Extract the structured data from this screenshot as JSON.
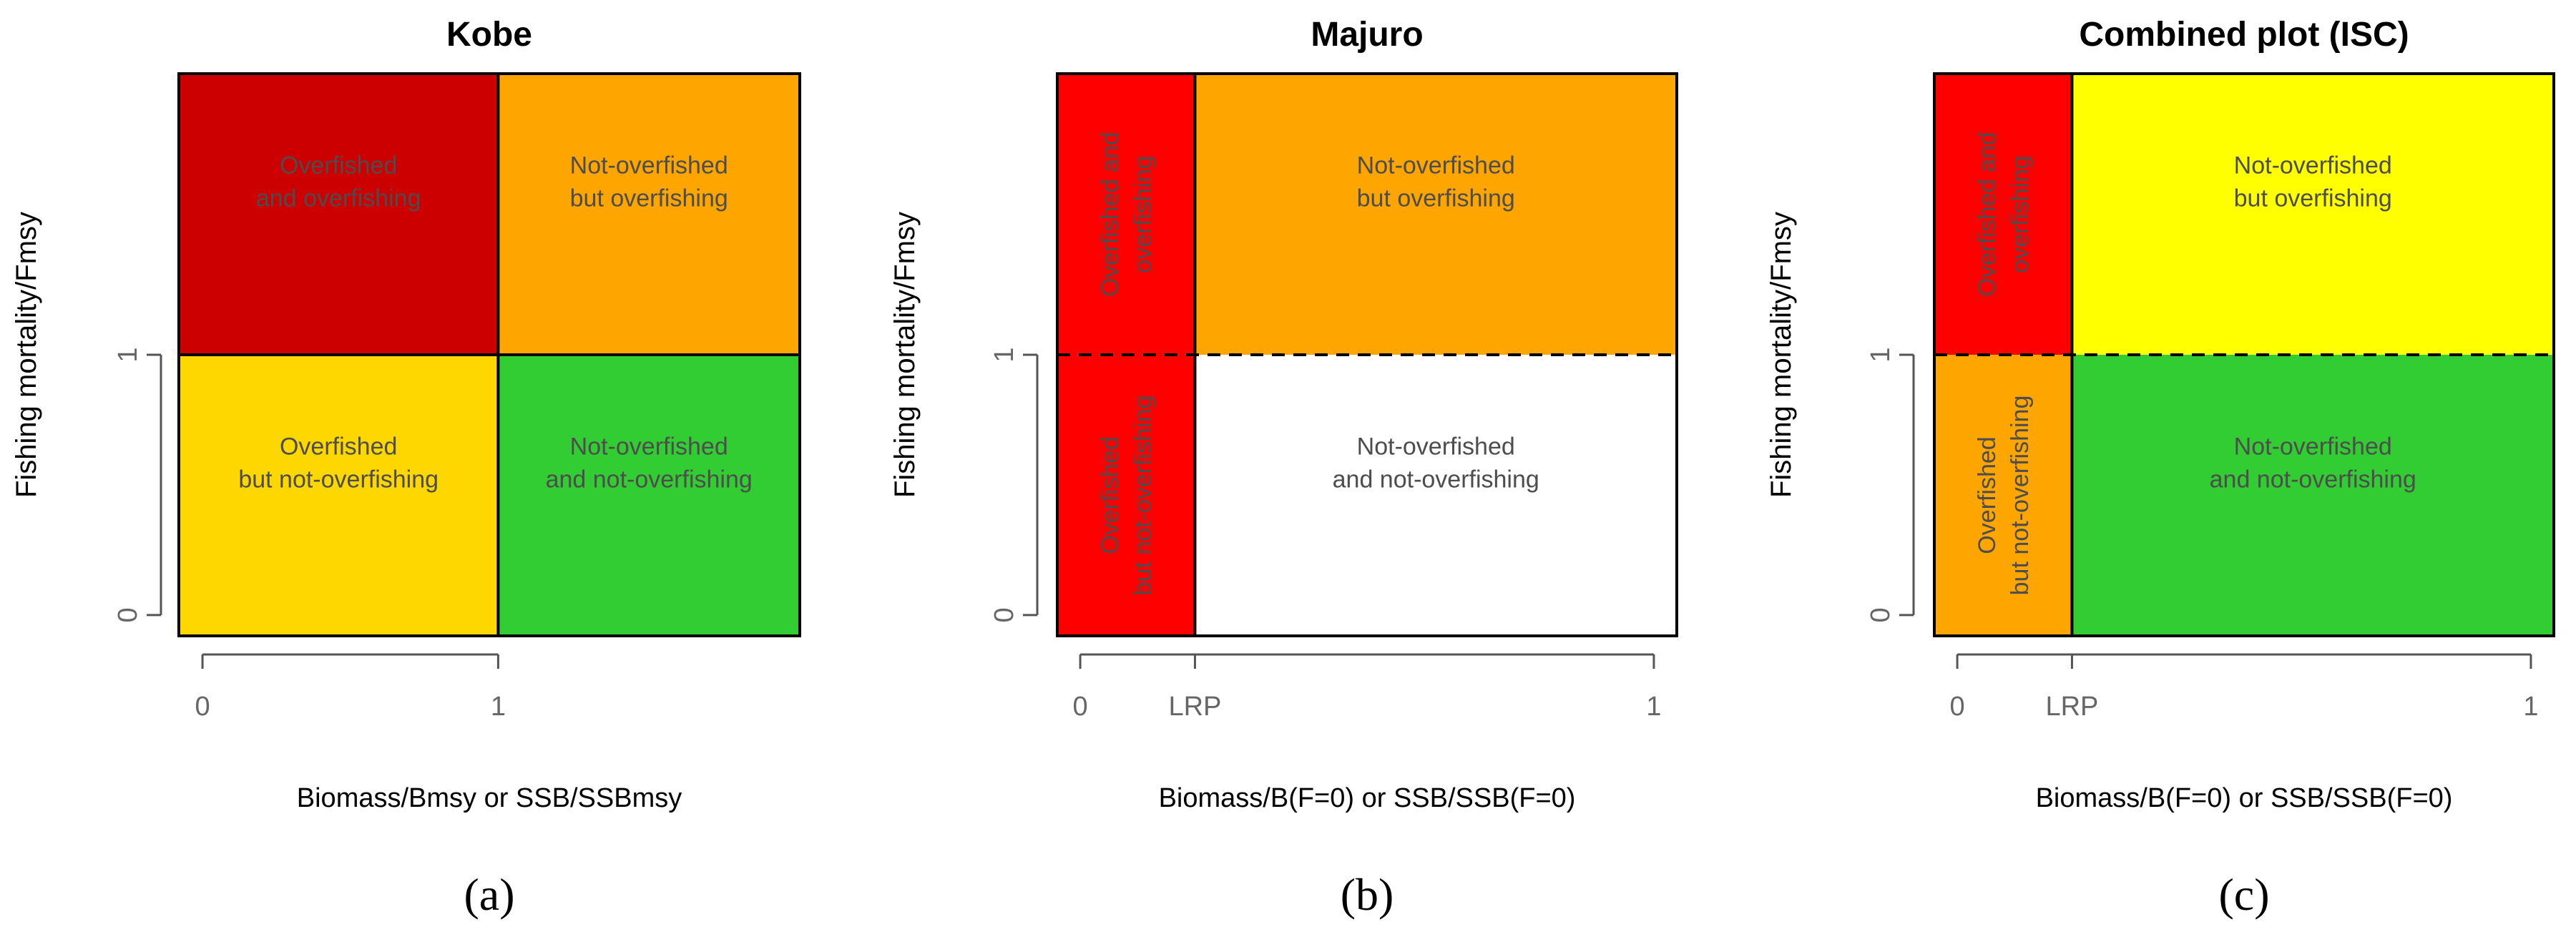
{
  "chart_data": [
    {
      "type": "heatmap",
      "panel_label": "(a)",
      "title": "Kobe",
      "xlabel": "Biomass/Bmsy or SSB/SSBmsy",
      "ylabel": "Fishing mortality/Fmsy",
      "xlim": [
        -0.08,
        2.02
      ],
      "ylim": [
        -0.08,
        2.08
      ],
      "x_ticks": [
        {
          "value": 0,
          "label": "0"
        },
        {
          "value": 1,
          "label": "1"
        }
      ],
      "y_ticks": [
        {
          "value": 0,
          "label": "0"
        },
        {
          "value": 1,
          "label": "1"
        }
      ],
      "dashed_hline": false,
      "regions": [
        {
          "x0": -0.08,
          "x1": 1,
          "y0": 1,
          "y1": 2.08,
          "color": "#cc0000",
          "lines": [
            "Overfished",
            "and overfishing"
          ],
          "vertical": false
        },
        {
          "x0": 1,
          "x1": 2.02,
          "y0": 1,
          "y1": 2.08,
          "color": "#ffa500",
          "lines": [
            "Not-overfished",
            "but overfishing"
          ],
          "vertical": false
        },
        {
          "x0": -0.08,
          "x1": 1,
          "y0": -0.08,
          "y1": 1,
          "color": "#ffd700",
          "lines": [
            "Overfished",
            "but not-overfishing"
          ],
          "vertical": false
        },
        {
          "x0": 1,
          "x1": 2.02,
          "y0": -0.08,
          "y1": 1,
          "color": "#32cd32",
          "lines": [
            "Not-overfished",
            "and not-overfishing"
          ],
          "vertical": false
        }
      ]
    },
    {
      "type": "heatmap",
      "panel_label": "(b)",
      "title": "Majuro",
      "xlabel": "Biomass/B(F=0) or SSB/SSB(F=0)",
      "ylabel": "Fishing mortality/Fmsy",
      "xlim": [
        -0.04,
        1.04
      ],
      "ylim": [
        -0.08,
        2.08
      ],
      "x_ticks": [
        {
          "value": 0,
          "label": "0"
        },
        {
          "value": 0.2,
          "label": "LRP"
        },
        {
          "value": 1,
          "label": "1"
        }
      ],
      "y_ticks": [
        {
          "value": 0,
          "label": "0"
        },
        {
          "value": 1,
          "label": "1"
        }
      ],
      "dashed_hline": true,
      "regions": [
        {
          "x0": -0.04,
          "x1": 0.2,
          "y0": 1,
          "y1": 2.08,
          "color": "#ff0000",
          "lines": [
            "Overfished and",
            "overfishing"
          ],
          "vertical": true
        },
        {
          "x0": 0.2,
          "x1": 1.04,
          "y0": 1,
          "y1": 2.08,
          "color": "#ffa500",
          "lines": [
            "Not-overfished",
            "but overfishing"
          ],
          "vertical": false
        },
        {
          "x0": -0.04,
          "x1": 0.2,
          "y0": -0.08,
          "y1": 1,
          "color": "#ff0000",
          "lines": [
            "Overfished",
            "but not-overfishing"
          ],
          "vertical": true
        },
        {
          "x0": 0.2,
          "x1": 1.04,
          "y0": -0.08,
          "y1": 1,
          "color": "#ffffff",
          "lines": [
            "Not-overfished",
            "and not-overfishing"
          ],
          "vertical": false
        }
      ]
    },
    {
      "type": "heatmap",
      "panel_label": "(c)",
      "title": "Combined plot (ISC)",
      "xlabel": "Biomass/B(F=0) or SSB/SSB(F=0)",
      "ylabel": "Fishing mortality/Fmsy",
      "xlim": [
        -0.04,
        1.04
      ],
      "ylim": [
        -0.08,
        2.08
      ],
      "x_ticks": [
        {
          "value": 0,
          "label": "0"
        },
        {
          "value": 0.2,
          "label": "LRP"
        },
        {
          "value": 1,
          "label": "1"
        }
      ],
      "y_ticks": [
        {
          "value": 0,
          "label": "0"
        },
        {
          "value": 1,
          "label": "1"
        }
      ],
      "dashed_hline": true,
      "regions": [
        {
          "x0": -0.04,
          "x1": 0.2,
          "y0": 1,
          "y1": 2.08,
          "color": "#ff0000",
          "lines": [
            "Overfished and",
            "overfishing"
          ],
          "vertical": true
        },
        {
          "x0": 0.2,
          "x1": 1.04,
          "y0": 1,
          "y1": 2.08,
          "color": "#ffff00",
          "lines": [
            "Not-overfished",
            "but overfishing"
          ],
          "vertical": false
        },
        {
          "x0": -0.04,
          "x1": 0.2,
          "y0": -0.08,
          "y1": 1,
          "color": "#ffa500",
          "lines": [
            "Overfished",
            "but not-overfishing"
          ],
          "vertical": true
        },
        {
          "x0": 0.2,
          "x1": 1.04,
          "y0": -0.08,
          "y1": 1,
          "color": "#32cd32",
          "lines": [
            "Not-overfished",
            "and not-overfishing"
          ],
          "vertical": false
        }
      ]
    }
  ]
}
